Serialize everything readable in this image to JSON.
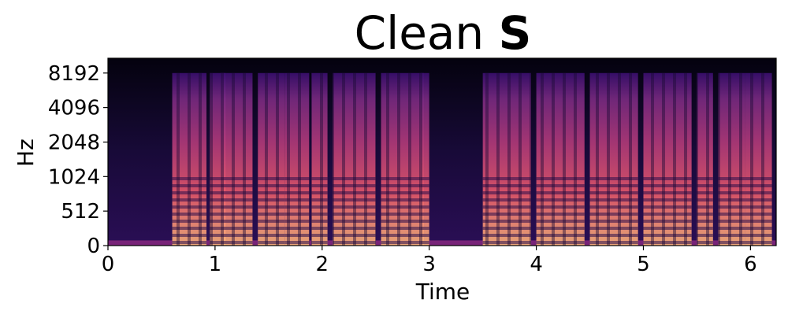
{
  "chart_data": {
    "type": "spectrogram",
    "title": "Clean",
    "title_symbol": "S",
    "x_label": "Time",
    "y_label": "Hz",
    "xlim": [
      0,
      6.24
    ],
    "xticks": [
      0,
      1,
      2,
      3,
      4,
      5,
      6
    ],
    "ylim": [
      0,
      11025
    ],
    "yscale": "symlog",
    "linthresh": 512,
    "yticks": [
      0,
      512,
      1024,
      2048,
      4096,
      8192
    ],
    "colormap": [
      "#000004",
      "#3b0f70",
      "#8c2981",
      "#de4968",
      "#fe9f6d",
      "#fcfdbf"
    ],
    "segments": {
      "start": [
        0.6,
        0.95,
        1.05,
        1.4,
        1.65,
        1.9,
        2.1,
        2.55,
        2.92,
        3.5,
        4.0,
        4.5,
        5.0,
        5.5,
        5.7,
        5.95
      ],
      "end": [
        0.92,
        1.1,
        1.35,
        1.65,
        1.88,
        2.05,
        2.5,
        2.95,
        3.0,
        3.95,
        4.45,
        4.95,
        5.45,
        5.65,
        5.95,
        6.2
      ]
    }
  }
}
